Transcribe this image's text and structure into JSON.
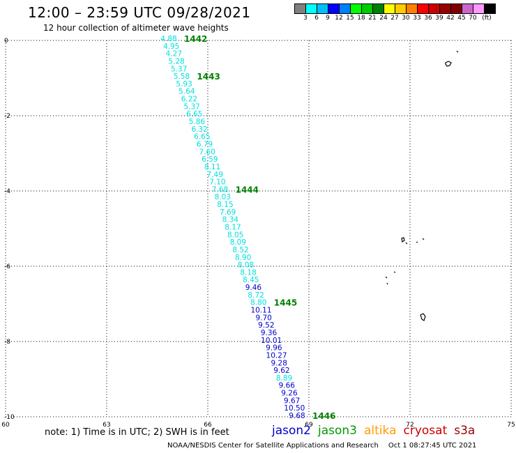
{
  "header": {
    "title": "12:00 – 23:59 UTC 09/28/2021",
    "subtitle": "12 hour collection of altimeter wave heights"
  },
  "legend": {
    "colors": [
      "#808080",
      "#00ffff",
      "#00bfff",
      "#0000ff",
      "#0080ff",
      "#00ff00",
      "#00cc00",
      "#008000",
      "#ffff00",
      "#ffcc00",
      "#ff8000",
      "#ff0000",
      "#cc0000",
      "#990000",
      "#800000",
      "#cc66cc",
      "#ff99ff",
      "#000000"
    ],
    "labels": [
      "3",
      "6",
      "9",
      "12",
      "15",
      "18",
      "21",
      "24",
      "27",
      "30",
      "33",
      "36",
      "39",
      "42",
      "45",
      "70",
      "(ft)"
    ]
  },
  "axes": {
    "x_ticks": [
      "60",
      "63",
      "66",
      "69",
      "72",
      "75"
    ],
    "y_ticks": [
      "0",
      "-2",
      "-4",
      "-6",
      "-8",
      "-10"
    ],
    "x_range": [
      60,
      75
    ],
    "y_range": [
      -10,
      0
    ]
  },
  "track": {
    "values": [
      "4.88",
      "4.95",
      "4.27",
      "5.28",
      "5.37",
      "5.58",
      "5.93",
      "5.64",
      "6.22",
      "5.37",
      "6.65",
      "5.86",
      "6.32",
      "6.65",
      "6.79",
      "7.60",
      "6.59",
      "8.11",
      "7.49",
      "7.10",
      "7.68",
      "8.03",
      "8.15",
      "7.69",
      "8.34",
      "8.17",
      "8.05",
      "8.09",
      "8.52",
      "8.90",
      "8.08",
      "8.18",
      "8.45",
      "9.46",
      "8.72",
      "8.80",
      "10.11",
      "9.70",
      "9.52",
      "9.36",
      "10.01",
      "9.96",
      "10.27",
      "9.28",
      "9.62",
      "8.89",
      "9.66",
      "9.26",
      "9.67",
      "10.50",
      "9.68"
    ],
    "colors": [
      "#00e0e0",
      "#00e0e0",
      "#00e0e0",
      "#00e0e0",
      "#00e0e0",
      "#00e0e0",
      "#00e0e0",
      "#00e0e0",
      "#00e0e0",
      "#00e0e0",
      "#00e0e0",
      "#00e0e0",
      "#00e0e0",
      "#00e0e0",
      "#00e0e0",
      "#00e0e0",
      "#00e0e0",
      "#00e0e0",
      "#00e0e0",
      "#00e0e0",
      "#00e0e0",
      "#00e0e0",
      "#00e0e0",
      "#00e0e0",
      "#00e0e0",
      "#00e0e0",
      "#00e0e0",
      "#00e0e0",
      "#00e0e0",
      "#00e0e0",
      "#00e0e0",
      "#00e0e0",
      "#00e0e0",
      "#0000cc",
      "#00e0e0",
      "#00e0e0",
      "#0000cc",
      "#0000cc",
      "#0000cc",
      "#0000cc",
      "#0000cc",
      "#0000cc",
      "#0000cc",
      "#0000cc",
      "#0000cc",
      "#00e0e0",
      "#0000cc",
      "#0000cc",
      "#0000cc",
      "#0000cc",
      "#0000cc"
    ],
    "time_labels": [
      {
        "text": "1442",
        "index": 0
      },
      {
        "text": "1443",
        "index": 5
      },
      {
        "text": "1444",
        "index": 20
      },
      {
        "text": "1445",
        "index": 35
      },
      {
        "text": "1446",
        "index": 50
      }
    ],
    "time_label_color": "#008000"
  },
  "footer": {
    "note": "note:  1) Time is in UTC;  2) SWH is in feet",
    "satellites": [
      {
        "name": "jason2",
        "color": "#0000cc"
      },
      {
        "name": "jason3",
        "color": "#009900"
      },
      {
        "name": "altika",
        "color": "#ff9900"
      },
      {
        "name": "cryosat",
        "color": "#cc0000"
      },
      {
        "name": "s3a",
        "color": "#990000"
      }
    ],
    "credit": "NOAA/NESDIS Center for Satellite Applications and Research",
    "timestamp": "Oct  1 08:27:45 UTC 2021"
  }
}
